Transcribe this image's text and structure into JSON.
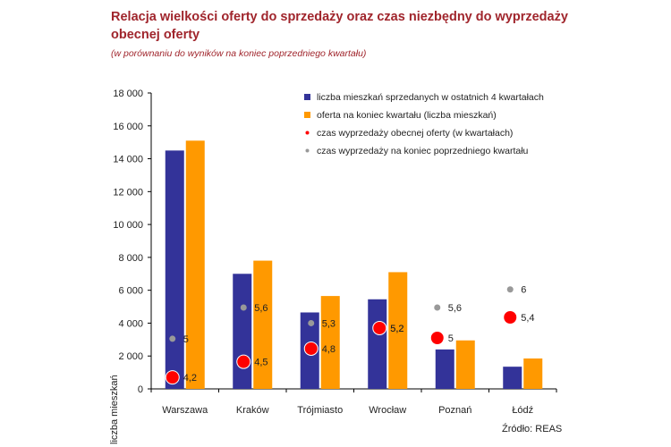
{
  "title": "Relacja wielkości oferty do sprzedaży oraz czas niezbędny do wyprzedaży obecnej oferty",
  "subtitle": "(w porównaniu do wyników na koniec poprzedniego kwartału)",
  "source": "Źródło: REAS",
  "colors": {
    "sold": "#333399",
    "offer": "#ff9900",
    "current_time": "#ff0000",
    "previous_time": "#999999",
    "title": "#a0252c"
  },
  "chart_data": {
    "type": "bar",
    "title": "Relacja wielkości oferty do sprzedaży oraz czas niezbędny do wyprzedaży obecnej oferty",
    "subtitle": "(w porównaniu do wyników na koniec poprzedniego kwartału)",
    "ylabel": "liczba mieszkań",
    "ylim": [
      0,
      18000
    ],
    "yticks": [
      0,
      2000,
      4000,
      6000,
      8000,
      10000,
      12000,
      14000,
      16000,
      18000
    ],
    "ytick_labels": [
      "0",
      "2 000",
      "4 000",
      "6 000",
      "8 000",
      "10 000",
      "12 000",
      "14 000",
      "16 000",
      "18 000"
    ],
    "categories": [
      "Warszawa",
      "Kraków",
      "Trójmiasto",
      "Wrocław",
      "Poznań",
      "Łódź"
    ],
    "series": [
      {
        "name": "liczba mieszkań sprzedanych w ostatnich 4 kwartałach",
        "kind": "bar",
        "color": "#333399",
        "values": [
          14500,
          7000,
          4650,
          5450,
          2400,
          1350
        ]
      },
      {
        "name": "oferta na koniec kwartału (liczba mieszkań)",
        "kind": "bar",
        "color": "#ff9900",
        "values": [
          15100,
          7800,
          5650,
          7100,
          2950,
          1850
        ]
      },
      {
        "name": "czas wyprzedaży obecnej oferty (w kwartałach)",
        "kind": "marker",
        "color": "#ff0000",
        "values": [
          4.2,
          4.5,
          4.8,
          5.2,
          5,
          5.4
        ],
        "labels": [
          "4,2",
          "4,5",
          "4,8",
          "5,2",
          "5",
          "5,4"
        ],
        "y_positions": [
          700,
          1650,
          2450,
          3700,
          3100,
          4350
        ]
      },
      {
        "name": "czas wyprzedaży na koniec poprzedniego kwartału",
        "kind": "marker",
        "color": "#999999",
        "values": [
          5,
          5.6,
          5.3,
          5.2,
          5.6,
          6
        ],
        "labels": [
          "5",
          "5,6",
          "5,3",
          "5,2",
          "5,6",
          "6"
        ],
        "y_positions": [
          3050,
          4950,
          4000,
          3700,
          4950,
          6050
        ]
      }
    ],
    "legend_position": "top-right",
    "grid": false
  }
}
